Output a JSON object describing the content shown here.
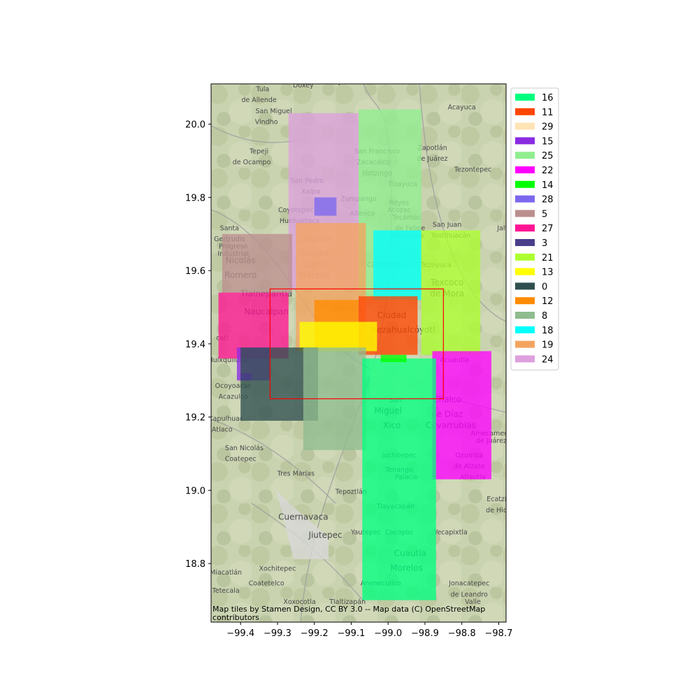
{
  "chart_data": {
    "type": "map",
    "xlim": [
      -99.48,
      -98.68
    ],
    "ylim": [
      18.64,
      20.11
    ],
    "x_ticks": [
      -99.4,
      -99.3,
      -99.2,
      -99.1,
      -99.0,
      -98.9,
      -98.8,
      -98.7
    ],
    "x_tick_labels": [
      "−99.4",
      "−99.3",
      "−99.2",
      "−99.1",
      "−99.0",
      "−98.9",
      "−98.8",
      "−98.7"
    ],
    "y_ticks": [
      18.8,
      19.0,
      19.2,
      19.4,
      19.6,
      19.8,
      20.0
    ],
    "y_tick_labels": [
      "18.8",
      "19.0",
      "19.2",
      "19.4",
      "19.6",
      "19.8",
      "20.0"
    ],
    "legend_position": "outside right, top",
    "attribution": [
      "Map tiles by Stamen Design, CC BY 3.0 -- Map data (C) OpenStreetMap",
      "contributors"
    ],
    "bounding_box": {
      "lon": [
        -99.32,
        -98.85
      ],
      "lat": [
        19.25,
        19.55
      ],
      "color": "#ff0000"
    },
    "polygons": [
      {
        "id": "24",
        "color": "#dda0dd",
        "lon": [
          -99.27,
          -99.08
        ],
        "lat": [
          19.55,
          20.03
        ]
      },
      {
        "id": "25",
        "color": "#90ee90",
        "lon": [
          -99.08,
          -98.91
        ],
        "lat": [
          19.53,
          20.04
        ]
      },
      {
        "id": "5",
        "color": "#bc8f8f",
        "lon": [
          -99.45,
          -99.26
        ],
        "lat": [
          19.54,
          19.7
        ]
      },
      {
        "id": "19",
        "color": "#f4a460",
        "lon": [
          -99.25,
          -99.06
        ],
        "lat": [
          19.38,
          19.73
        ]
      },
      {
        "id": "18",
        "color": "#00ffff",
        "lon": [
          -99.04,
          -98.91
        ],
        "lat": [
          19.52,
          19.71
        ]
      },
      {
        "id": "21",
        "color": "#adff2f",
        "lon": [
          -98.91,
          -98.75
        ],
        "lat": [
          19.37,
          19.71
        ]
      },
      {
        "id": "27",
        "color": "#ff1493",
        "lon": [
          -99.46,
          -99.27
        ],
        "lat": [
          19.36,
          19.54
        ]
      },
      {
        "id": "11",
        "color": "#ff4500",
        "lon": [
          -99.08,
          -98.92
        ],
        "lat": [
          19.37,
          19.53
        ]
      },
      {
        "id": "12",
        "color": "#ff8c00",
        "lon": [
          -99.2,
          -99.08
        ],
        "lat": [
          19.39,
          19.52
        ]
      },
      {
        "id": "13",
        "color": "#ffff00",
        "lon": [
          -99.24,
          -99.03
        ],
        "lat": [
          19.38,
          19.46
        ]
      },
      {
        "id": "15",
        "color": "#8a2be2",
        "lon": [
          -99.41,
          -99.32
        ],
        "lat": [
          19.3,
          19.39
        ]
      },
      {
        "id": "0",
        "color": "#2f4f4f",
        "lon": [
          -99.4,
          -99.19
        ],
        "lat": [
          19.19,
          19.39
        ]
      },
      {
        "id": "8",
        "color": "#8fbc8f",
        "lon": [
          -99.23,
          -99.06
        ],
        "lat": [
          19.11,
          19.39
        ]
      },
      {
        "id": "29",
        "color": "#ffe4b5",
        "lon": [
          -99.05,
          -98.88
        ],
        "lat": [
          19.25,
          19.36
        ]
      },
      {
        "id": "22",
        "color": "#ff00ff",
        "lon": [
          -98.88,
          -98.72
        ],
        "lat": [
          19.03,
          19.38
        ]
      },
      {
        "id": "16",
        "color": "#00ff7f",
        "lon": [
          -99.07,
          -98.87
        ],
        "lat": [
          18.7,
          19.36
        ]
      },
      {
        "id": "14",
        "color": "#00ff00",
        "lon": [
          -99.02,
          -98.95
        ],
        "lat": [
          19.35,
          19.37
        ]
      },
      {
        "id": "28",
        "color": "#7b68ee",
        "lon": [
          -99.2,
          -99.14
        ],
        "lat": [
          19.75,
          19.8
        ]
      },
      {
        "id": "3",
        "color": "#483d8b",
        "lon": [
          -99.4,
          -99.37
        ],
        "lat": [
          19.3,
          19.32
        ]
      }
    ],
    "legend": [
      {
        "label": "16",
        "color": "#00ff7f"
      },
      {
        "label": "11",
        "color": "#ff4500"
      },
      {
        "label": "29",
        "color": "#ffe4b5"
      },
      {
        "label": "15",
        "color": "#8a2be2"
      },
      {
        "label": "25",
        "color": "#90ee90"
      },
      {
        "label": "22",
        "color": "#ff00ff"
      },
      {
        "label": "14",
        "color": "#00ff00"
      },
      {
        "label": "28",
        "color": "#7b68ee"
      },
      {
        "label": "5",
        "color": "#bc8f8f"
      },
      {
        "label": "27",
        "color": "#ff1493"
      },
      {
        "label": "3",
        "color": "#483d8b"
      },
      {
        "label": "21",
        "color": "#adff2f"
      },
      {
        "label": "13",
        "color": "#ffff00"
      },
      {
        "label": "0",
        "color": "#2f4f4f"
      },
      {
        "label": "12",
        "color": "#ff8c00"
      },
      {
        "label": "8",
        "color": "#8fbc8f"
      },
      {
        "label": "18",
        "color": "#00ffff"
      },
      {
        "label": "19",
        "color": "#f4a460"
      },
      {
        "label": "24",
        "color": "#dda0dd"
      }
    ],
    "place_labels": [
      {
        "text": "Tula",
        "lon": -99.34,
        "lat": 20.09
      },
      {
        "text": "de Allende",
        "lon": -99.35,
        "lat": 20.06
      },
      {
        "text": "Doxey",
        "lon": -99.23,
        "lat": 20.1
      },
      {
        "text": "Ajacuba",
        "lon": -99.11,
        "lat": 20.11
      },
      {
        "text": "San Miguel",
        "lon": -99.31,
        "lat": 20.03
      },
      {
        "text": "Vindho",
        "lon": -99.33,
        "lat": 20.0
      },
      {
        "text": "Acayuca",
        "lon": -98.8,
        "lat": 20.04
      },
      {
        "text": "Tepeji",
        "lon": -99.35,
        "lat": 19.92
      },
      {
        "text": "de Ocampo",
        "lon": -99.37,
        "lat": 19.89
      },
      {
        "text": "San Francisco",
        "lon": -99.03,
        "lat": 19.92
      },
      {
        "text": "Zacacalco",
        "lon": -99.04,
        "lat": 19.89
      },
      {
        "text": "Zapotlán",
        "lon": -98.88,
        "lat": 19.93
      },
      {
        "text": "de Juárez",
        "lon": -98.88,
        "lat": 19.9
      },
      {
        "text": "Tezontepec",
        "lon": -98.77,
        "lat": 19.87
      },
      {
        "text": "Jilotzingo",
        "lon": -99.03,
        "lat": 19.86
      },
      {
        "text": "San Pedro",
        "lon": -99.22,
        "lat": 19.84
      },
      {
        "text": "Xalpa",
        "lon": -99.21,
        "lat": 19.81
      },
      {
        "text": "Tizayuca",
        "lon": -98.96,
        "lat": 19.83
      },
      {
        "text": "Zumpango",
        "lon": -99.08,
        "lat": 19.79
      },
      {
        "text": "Reyes",
        "lon": -98.97,
        "lat": 19.78
      },
      {
        "text": "Acozac",
        "lon": -98.97,
        "lat": 19.76
      },
      {
        "text": "Coyotepec",
        "lon": -99.25,
        "lat": 19.76
      },
      {
        "text": "Huehuetoca",
        "lon": -99.24,
        "lat": 19.73
      },
      {
        "text": "Altenco",
        "lon": -99.07,
        "lat": 19.75
      },
      {
        "text": "Tecámac",
        "lon": -98.95,
        "lat": 19.74
      },
      {
        "text": "de Felipe",
        "lon": -98.94,
        "lat": 19.71
      },
      {
        "text": "Villanueva",
        "lon": -98.95,
        "lat": 19.69
      },
      {
        "text": "San Juan",
        "lon": -98.84,
        "lat": 19.72
      },
      {
        "text": "Teotihuacán",
        "lon": -98.83,
        "lat": 19.69
      },
      {
        "text": "Jalt",
        "lon": -98.69,
        "lat": 19.71
      },
      {
        "text": "Santa",
        "lon": -99.43,
        "lat": 19.71
      },
      {
        "text": "Gertrudis",
        "lon": -99.43,
        "lat": 19.68
      },
      {
        "text": "Progreso",
        "lon": -99.42,
        "lat": 19.66
      },
      {
        "text": "Industrial",
        "lon": -99.42,
        "lat": 19.64
      },
      {
        "text": "Cuautitlán",
        "lon": -99.2,
        "lat": 19.68
      },
      {
        "text": "Ciudad",
        "lon": -99.2,
        "lat": 19.64
      },
      {
        "text": "López",
        "lon": -99.2,
        "lat": 19.61
      },
      {
        "text": "Mateos",
        "lon": -99.2,
        "lat": 19.58
      },
      {
        "text": "Nicolás",
        "lon": -99.4,
        "lat": 19.62
      },
      {
        "text": "Romero",
        "lon": -99.4,
        "lat": 19.58
      },
      {
        "text": "Ecatepec",
        "lon": -99.02,
        "lat": 19.61
      },
      {
        "text": "Tezoyuca",
        "lon": -98.87,
        "lat": 19.61
      },
      {
        "text": "Texcoco",
        "lon": -98.84,
        "lat": 19.56
      },
      {
        "text": "de Mora",
        "lon": -98.84,
        "lat": 19.53
      },
      {
        "text": "Tlalnepantla",
        "lon": -99.33,
        "lat": 19.53
      },
      {
        "text": "Naucalpan",
        "lon": -99.33,
        "lat": 19.48
      },
      {
        "text": "México",
        "lon": -99.11,
        "lat": 19.49
      },
      {
        "text": "Ciudad",
        "lon": -98.99,
        "lat": 19.47
      },
      {
        "text": "Nezahualcóyotl",
        "lon": -98.96,
        "lat": 19.43
      },
      {
        "text": "catl",
        "lon": -99.45,
        "lat": 19.41
      },
      {
        "text": "Huixquilucan",
        "lon": -99.43,
        "lat": 19.35
      },
      {
        "text": "Acuautla",
        "lon": -98.82,
        "lat": 19.35
      },
      {
        "text": "Ocoyoacac",
        "lon": -99.42,
        "lat": 19.28
      },
      {
        "text": "Acazulco",
        "lon": -99.42,
        "lat": 19.25
      },
      {
        "text": "Chalco",
        "lon": -98.84,
        "lat": 19.24
      },
      {
        "text": "de Díaz",
        "lon": -98.84,
        "lat": 19.2
      },
      {
        "text": "Covarrubias",
        "lon": -98.83,
        "lat": 19.17
      },
      {
        "text": "San",
        "lon": -98.98,
        "lat": 19.24
      },
      {
        "text": "Miguel",
        "lon": -99.0,
        "lat": 19.21
      },
      {
        "text": "Xico",
        "lon": -98.99,
        "lat": 19.17
      },
      {
        "text": "Capulhuac",
        "lon": -99.44,
        "lat": 19.19
      },
      {
        "text": "Atlaco",
        "lon": -99.45,
        "lat": 19.16
      },
      {
        "text": "San Nicolás",
        "lon": -99.39,
        "lat": 19.11
      },
      {
        "text": "Coatepec",
        "lon": -99.4,
        "lat": 19.08
      },
      {
        "text": "Amecameca",
        "lon": -98.72,
        "lat": 19.15
      },
      {
        "text": "de Juárez",
        "lon": -98.72,
        "lat": 19.13
      },
      {
        "text": "Ozumba",
        "lon": -98.78,
        "lat": 19.09
      },
      {
        "text": "de Alzate",
        "lon": -98.78,
        "lat": 19.06
      },
      {
        "text": "Atlautla",
        "lon": -98.77,
        "lat": 19.03
      },
      {
        "text": "Tres Marías",
        "lon": -99.25,
        "lat": 19.04
      },
      {
        "text": "Juchitepec",
        "lon": -98.97,
        "lat": 19.09
      },
      {
        "text": "Tenango",
        "lon": -98.97,
        "lat": 19.05
      },
      {
        "text": "Palacio",
        "lon": -98.95,
        "lat": 19.03
      },
      {
        "text": "Tepoztlán",
        "lon": -99.1,
        "lat": 18.99
      },
      {
        "text": "Ecatzin",
        "lon": -98.7,
        "lat": 18.97
      },
      {
        "text": "de Hida",
        "lon": -98.7,
        "lat": 18.94
      },
      {
        "text": "Tlayacapán",
        "lon": -98.98,
        "lat": 18.95
      },
      {
        "text": "Yecapixtla",
        "lon": -98.83,
        "lat": 18.88
      },
      {
        "text": "Yautepec",
        "lon": -99.06,
        "lat": 18.88
      },
      {
        "text": "Cocoyoc",
        "lon": -98.97,
        "lat": 18.88
      },
      {
        "text": "Cuernavaca",
        "lon": -99.23,
        "lat": 18.92
      },
      {
        "text": "Cuautla",
        "lon": -98.94,
        "lat": 18.82
      },
      {
        "text": "Morelos",
        "lon": -98.95,
        "lat": 18.78
      },
      {
        "text": "Jiutepec",
        "lon": -99.17,
        "lat": 18.87
      },
      {
        "text": "Miacatlán",
        "lon": -99.44,
        "lat": 18.77
      },
      {
        "text": "Xochitepec",
        "lon": -99.3,
        "lat": 18.78
      },
      {
        "text": "Coatetelco",
        "lon": -99.33,
        "lat": 18.74
      },
      {
        "text": "Tetecala",
        "lon": -99.44,
        "lat": 18.72
      },
      {
        "text": "Xoxocotla",
        "lon": -99.24,
        "lat": 18.69
      },
      {
        "text": "Anenecuilco",
        "lon": -99.02,
        "lat": 18.74
      },
      {
        "text": "Tlaltizapán",
        "lon": -99.11,
        "lat": 18.69
      },
      {
        "text": "Jonacatepec",
        "lon": -98.78,
        "lat": 18.74
      },
      {
        "text": "de Leandro",
        "lon": -98.78,
        "lat": 18.71
      },
      {
        "text": "Valle",
        "lon": -98.77,
        "lat": 18.69
      }
    ]
  }
}
